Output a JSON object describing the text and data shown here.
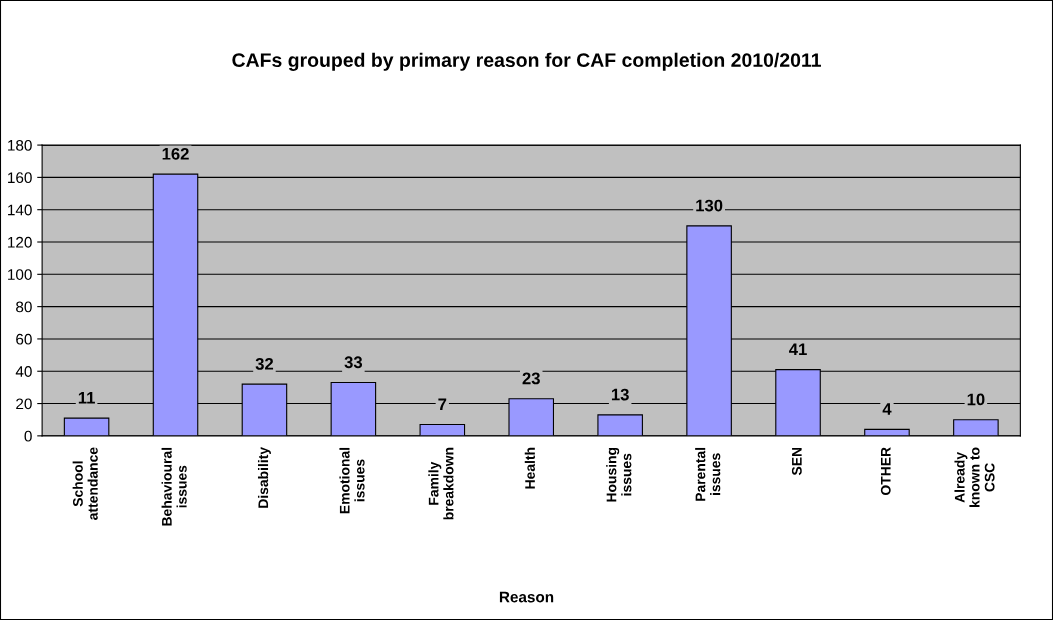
{
  "chart_data": {
    "type": "bar",
    "title": "CAFs grouped by primary reason for CAF completion 2010/2011",
    "xlabel": "Reason",
    "categories": [
      "School\nattendance",
      "Behavioural\nissues",
      "Disability",
      "Emotional\nissues",
      "Family\nbreakdown",
      "Health",
      "Housing\nissues",
      "Parental\nissues",
      "SEN",
      "OTHER",
      "Already\nknown to\nCSC"
    ],
    "values": [
      11,
      162,
      32,
      33,
      7,
      23,
      13,
      130,
      41,
      4,
      10
    ],
    "color": "#9999ff",
    "ylim": [
      0,
      180
    ],
    "yticks": [
      0,
      20,
      40,
      60,
      80,
      100,
      120,
      140,
      160,
      180
    ],
    "grid": "y",
    "data_labels": true
  }
}
